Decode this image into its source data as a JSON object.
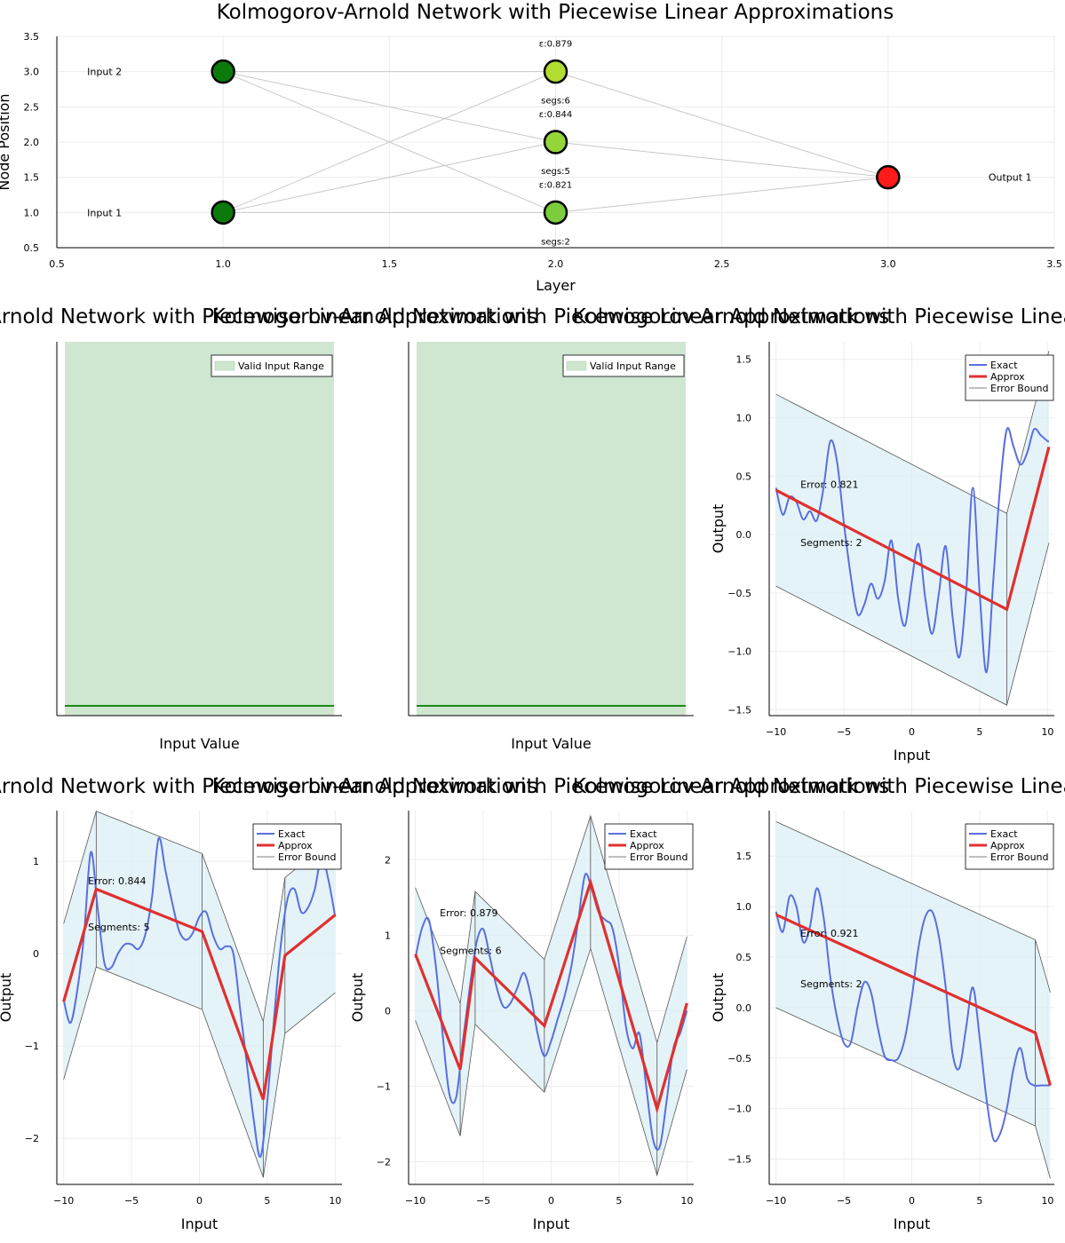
{
  "title": "Kolmogorov-Arnold Network with Piecewise Linear Approximations",
  "colors": {
    "exact": "#5a6ee0",
    "approx": "#e03030",
    "band": "#d8eef4",
    "bound": "#555555",
    "valid_fill": "#cfe6d0",
    "valid_line": "#1a8a1a",
    "input_node": "#0b7a0b",
    "output_node": "#ff1a1a",
    "edge": "#c8c8c8"
  },
  "chart_data": [
    {
      "type": "scatter",
      "title": "Kolmogorov-Arnold Network with Piecewise Linear Approximations",
      "xlabel": "Layer",
      "ylabel": "Node Position",
      "xlim": [
        0.5,
        3.5
      ],
      "ylim": [
        0.5,
        3.5
      ],
      "xticks": [
        "0.5",
        "1.0",
        "1.5",
        "2.0",
        "2.5",
        "3.0",
        "3.5"
      ],
      "yticks": [
        "0.5",
        "1.0",
        "1.5",
        "2.0",
        "2.5",
        "3.0",
        "3.5"
      ],
      "grid": true,
      "nodes": [
        {
          "x": 1,
          "y": 1,
          "label": "Input 1",
          "color": "#0b7a0b"
        },
        {
          "x": 1,
          "y": 3,
          "label": "Input 2",
          "color": "#0b7a0b"
        },
        {
          "x": 2,
          "y": 1,
          "eps": "ε:0.821",
          "segs": "segs:2",
          "color": "#7ccc3c"
        },
        {
          "x": 2,
          "y": 2,
          "eps": "ε:0.844",
          "segs": "segs:5",
          "color": "#94d538"
        },
        {
          "x": 2,
          "y": 3,
          "eps": "ε:0.879",
          "segs": "segs:6",
          "color": "#b2dc30"
        },
        {
          "x": 3,
          "y": 1.5,
          "label": "Output 1",
          "color": "#ff1a1a"
        }
      ],
      "edges": [
        [
          1,
          1,
          2,
          1
        ],
        [
          1,
          1,
          2,
          2
        ],
        [
          1,
          1,
          2,
          3
        ],
        [
          1,
          3,
          2,
          1
        ],
        [
          1,
          3,
          2,
          2
        ],
        [
          1,
          3,
          2,
          3
        ],
        [
          2,
          1,
          3,
          1.5
        ],
        [
          2,
          2,
          3,
          1.5
        ],
        [
          2,
          3,
          3,
          1.5
        ]
      ]
    },
    {
      "type": "area",
      "title": "Kolmogorov-Arnold Network with Piecewise Linear Approximations",
      "xlabel": "Input Value",
      "legend": [
        "Valid Input Range"
      ],
      "legend_position": "top-right"
    },
    {
      "type": "area",
      "title": "Kolmogorov-Arnold Network with Piecewise Linear Approximations",
      "xlabel": "Input Value",
      "legend": [
        "Valid Input Range"
      ],
      "legend_position": "top-right"
    },
    {
      "type": "line",
      "title": "Kolmogorov-Arnold Network with Piecewise Linear Approximations",
      "xlabel": "Input",
      "ylabel": "Output",
      "xlim": [
        -10.5,
        10.5
      ],
      "ylim": [
        -1.55,
        1.65
      ],
      "xticks": [
        -10,
        -5,
        0,
        5,
        10
      ],
      "yticks": [
        -1.5,
        -1.0,
        -0.5,
        0.0,
        0.5,
        1.0,
        1.5
      ],
      "ytick_labels": [
        "−1.5",
        "−1.0",
        "−0.5",
        "0.0",
        "0.5",
        "1.0",
        "1.5"
      ],
      "legend": [
        "Exact",
        "Approx",
        "Error Bound"
      ],
      "legend_position": "top-right",
      "annotations": [
        "Error: 0.821",
        "Segments: 2"
      ],
      "annotation_positions": [
        [
          -8.2,
          0.4
        ],
        [
          -8.2,
          -0.1
        ]
      ],
      "error": 0.821,
      "approx_x": [
        -10,
        7,
        10.1
      ],
      "approx_y": [
        0.38,
        -0.64,
        0.75
      ],
      "exact_x": [
        -10,
        -9.5,
        -9,
        -8.5,
        -8,
        -7.5,
        -7,
        -6.5,
        -6,
        -5.5,
        -5,
        -4.5,
        -4,
        -3.5,
        -3,
        -2.5,
        -2,
        -1.5,
        -1,
        -0.5,
        0,
        0.5,
        1,
        1.5,
        2,
        2.5,
        3,
        3.5,
        4,
        4.5,
        5,
        5.5,
        6,
        6.5,
        7,
        7.5,
        8,
        8.5,
        9,
        9.5,
        10,
        10.1
      ],
      "exact_y": [
        0.4,
        0.17,
        0.32,
        0.28,
        0.13,
        0.2,
        0.12,
        0.4,
        0.8,
        0.62,
        0.1,
        -0.35,
        -0.68,
        -0.6,
        -0.42,
        -0.55,
        -0.4,
        -0.05,
        -0.55,
        -0.78,
        -0.4,
        -0.08,
        -0.55,
        -0.85,
        -0.5,
        -0.1,
        -0.7,
        -1.05,
        -0.5,
        0.4,
        -0.5,
        -1.18,
        -0.4,
        0.4,
        0.9,
        0.75,
        0.6,
        0.7,
        0.9,
        0.85,
        0.8,
        0.8
      ]
    },
    {
      "type": "line",
      "title": "Kolmogorov-Arnold Network with Piecewise Linear Approximations",
      "xlabel": "Input",
      "ylabel": "Output",
      "xlim": [
        -10.5,
        10.5
      ],
      "ylim": [
        -2.5,
        1.55
      ],
      "xticks": [
        -10,
        -5,
        0,
        5,
        10
      ],
      "yticks": [
        -2,
        -1,
        0,
        1
      ],
      "ytick_labels": [
        "−2",
        "−1",
        "0",
        "1"
      ],
      "legend": [
        "Exact",
        "Approx",
        "Error Bound"
      ],
      "legend_position": "top-right",
      "annotations": [
        "Error: 0.844",
        "Segments: 5"
      ],
      "annotation_positions": [
        [
          -8.2,
          0.75
        ],
        [
          -8.2,
          0.25
        ]
      ],
      "error": 0.844,
      "approx_x": [
        -10,
        -7.6,
        0.2,
        4.7,
        6.3,
        10
      ],
      "approx_y": [
        -0.52,
        0.7,
        0.24,
        -1.58,
        -0.02,
        0.42
      ],
      "exact_x": [
        -10,
        -9.5,
        -9,
        -8.5,
        -8,
        -7.5,
        -7,
        -6.5,
        -6,
        -5.5,
        -5,
        -4.5,
        -4,
        -3.5,
        -3,
        -2.5,
        -2,
        -1.5,
        -1,
        -0.5,
        0,
        0.5,
        1,
        1.5,
        2,
        2.5,
        3,
        3.5,
        4,
        4.5,
        5,
        5.5,
        6,
        6.5,
        7,
        7.5,
        8,
        8.5,
        9,
        9.5,
        10
      ],
      "exact_y": [
        -0.5,
        -0.75,
        -0.4,
        0.2,
        1.1,
        0.5,
        -0.1,
        -0.15,
        0.0,
        0.1,
        0.1,
        0.05,
        0.2,
        0.6,
        1.25,
        0.9,
        0.55,
        0.25,
        0.15,
        0.22,
        0.4,
        0.45,
        0.2,
        0.05,
        0.08,
        0.0,
        -0.6,
        -1.2,
        -1.8,
        -2.2,
        -1.6,
        -0.7,
        0.1,
        0.6,
        0.7,
        0.45,
        0.5,
        0.7,
        1.05,
        0.8,
        0.4
      ]
    },
    {
      "type": "line",
      "title": "Kolmogorov-Arnold Network with Piecewise Linear Approximations",
      "xlabel": "Input",
      "ylabel": "Output",
      "xlim": [
        -10.5,
        10.5
      ],
      "ylim": [
        -2.3,
        2.65
      ],
      "xticks": [
        -10,
        -5,
        0,
        5,
        10
      ],
      "yticks": [
        -2,
        -1,
        0,
        1,
        2
      ],
      "ytick_labels": [
        "−2",
        "−1",
        "0",
        "1",
        "2"
      ],
      "legend": [
        "Exact",
        "Approx",
        "Error Bound"
      ],
      "legend_position": "top-right",
      "annotations": [
        "Error: 0.879",
        "Segments: 6"
      ],
      "annotation_positions": [
        [
          -8.2,
          1.25
        ],
        [
          -8.2,
          0.75
        ]
      ],
      "error": 0.879,
      "approx_x": [
        -10,
        -6.7,
        -5.6,
        -0.5,
        2.9,
        7.8,
        10
      ],
      "approx_y": [
        0.75,
        -0.78,
        0.7,
        -0.2,
        1.7,
        -1.3,
        0.1
      ],
      "exact_x": [
        -10,
        -9.5,
        -9,
        -8.5,
        -8,
        -7.5,
        -7,
        -6.5,
        -6,
        -5.5,
        -5,
        -4.5,
        -4,
        -3.5,
        -3,
        -2.5,
        -2,
        -1.5,
        -1,
        -0.5,
        0,
        0.5,
        1,
        1.5,
        2,
        2.5,
        3,
        3.5,
        4,
        4.5,
        5,
        5.5,
        6,
        6.5,
        7,
        7.5,
        8,
        8.5,
        9,
        9.5,
        10
      ],
      "exact_y": [
        0.7,
        1.1,
        1.2,
        0.6,
        -0.3,
        -1.1,
        -1.15,
        -0.4,
        0.3,
        0.9,
        1.08,
        0.7,
        0.3,
        0.05,
        0.1,
        0.3,
        0.5,
        0.2,
        -0.3,
        -0.6,
        -0.4,
        -0.1,
        0.2,
        0.6,
        1.2,
        1.8,
        1.6,
        1.3,
        1.2,
        1.1,
        0.6,
        -0.2,
        -0.5,
        -0.3,
        -1.0,
        -1.7,
        -1.8,
        -1.2,
        -0.5,
        -0.3,
        0.0
      ]
    },
    {
      "type": "line",
      "title": "Kolmogorov-Arnold Network with Piecewise Linear Approximations",
      "xlabel": "Input",
      "ylabel": "Output",
      "xlim": [
        -10.5,
        10.5
      ],
      "ylim": [
        -1.75,
        1.95
      ],
      "xticks": [
        -10,
        -5,
        0,
        5,
        10
      ],
      "yticks": [
        -1.5,
        -1.0,
        -0.5,
        0.0,
        0.5,
        1.0,
        1.5
      ],
      "ytick_labels": [
        "−1.5",
        "−1.0",
        "−0.5",
        "0.0",
        "0.5",
        "1.0",
        "1.5"
      ],
      "legend": [
        "Exact",
        "Approx",
        "Error Bound"
      ],
      "legend_position": "top-right",
      "annotations": [
        "Error: 0.921",
        "Segments: 2"
      ],
      "annotation_positions": [
        [
          -8.2,
          0.7
        ],
        [
          -8.2,
          0.2
        ]
      ],
      "error": 0.921,
      "approx_x": [
        -10,
        9.1,
        10.2
      ],
      "approx_y": [
        0.92,
        -0.25,
        -0.77
      ],
      "exact_x": [
        -10,
        -9.5,
        -9,
        -8.5,
        -8,
        -7.5,
        -7,
        -6.5,
        -6,
        -5.5,
        -5,
        -4.5,
        -4,
        -3.5,
        -3,
        -2.5,
        -2,
        -1.5,
        -1,
        -0.5,
        0,
        0.5,
        1,
        1.5,
        2,
        2.5,
        3,
        3.5,
        4,
        4.5,
        5,
        5.5,
        6,
        6.5,
        7,
        7.5,
        8,
        8.5,
        9,
        9.5,
        10,
        10.2
      ],
      "exact_y": [
        0.95,
        0.75,
        1.1,
        1.0,
        0.65,
        0.8,
        1.18,
        0.9,
        0.3,
        -0.1,
        -0.35,
        -0.35,
        0.0,
        0.25,
        0.15,
        -0.2,
        -0.48,
        -0.52,
        -0.5,
        -0.3,
        0.1,
        0.6,
        0.9,
        0.95,
        0.7,
        0.2,
        -0.45,
        -0.6,
        -0.2,
        0.2,
        -0.3,
        -0.9,
        -1.3,
        -1.25,
        -1.0,
        -0.6,
        -0.4,
        -0.7,
        -0.77,
        -0.77,
        -0.77,
        -0.77
      ]
    }
  ]
}
